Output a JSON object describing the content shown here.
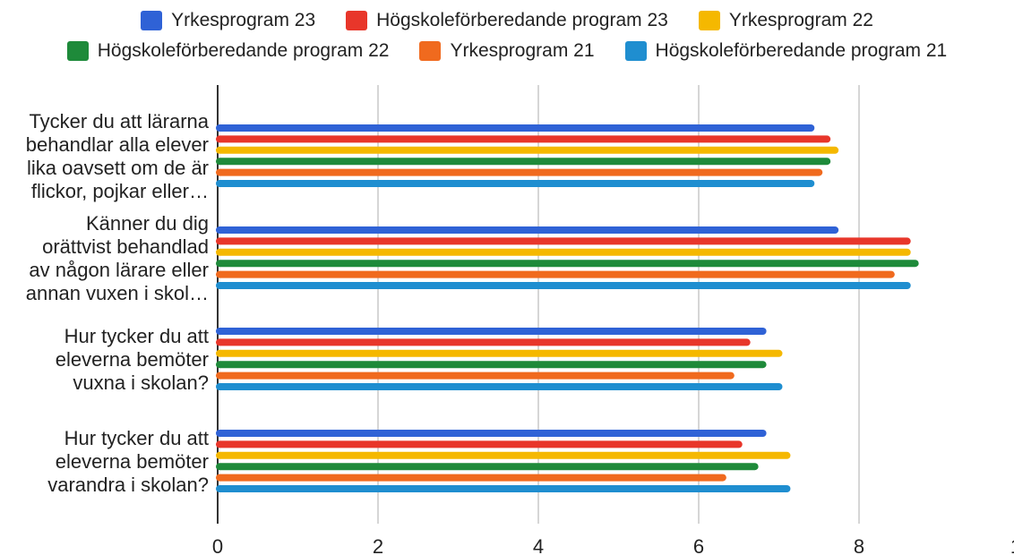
{
  "chart_data": {
    "type": "bar",
    "orientation": "horizontal",
    "categories": [
      [
        "Tycker du att lärarna",
        "behandlar alla elever",
        "lika oavsett om de är",
        "flickor, pojkar eller…"
      ],
      [
        "Känner du dig",
        "orättvist behandlad",
        "av någon lärare eller",
        "annan vuxen i skol…"
      ],
      [
        "Hur tycker du att",
        "eleverna bemöter",
        "vuxna i skolan?"
      ],
      [
        "Hur tycker du att",
        "eleverna bemöter",
        "varandra i skolan?"
      ]
    ],
    "series": [
      {
        "name": "Yrkesprogram 23",
        "color": "#2f62d6",
        "values": [
          7.4,
          7.7,
          6.8,
          6.8
        ]
      },
      {
        "name": "Högskoleförberedande program 23",
        "color": "#e8362a",
        "values": [
          7.6,
          8.6,
          6.6,
          6.5
        ]
      },
      {
        "name": "Yrkesprogram 22",
        "color": "#f5b800",
        "values": [
          7.7,
          8.6,
          7.0,
          7.1
        ]
      },
      {
        "name": "Högskoleförberedande program 22",
        "color": "#1e8a3a",
        "values": [
          7.6,
          8.7,
          6.8,
          6.7
        ]
      },
      {
        "name": "Yrkesprogram 21",
        "color": "#f06a1e",
        "values": [
          7.5,
          8.4,
          6.4,
          6.3
        ]
      },
      {
        "name": "Högskoleförberedande program 21",
        "color": "#1f8ed0",
        "values": [
          7.4,
          8.6,
          7.0,
          7.1
        ]
      }
    ],
    "xticks": [
      "0",
      "2",
      "4",
      "6",
      "8",
      "1"
    ],
    "xlim": [
      0,
      10
    ],
    "grid": true,
    "legend_position": "top"
  }
}
